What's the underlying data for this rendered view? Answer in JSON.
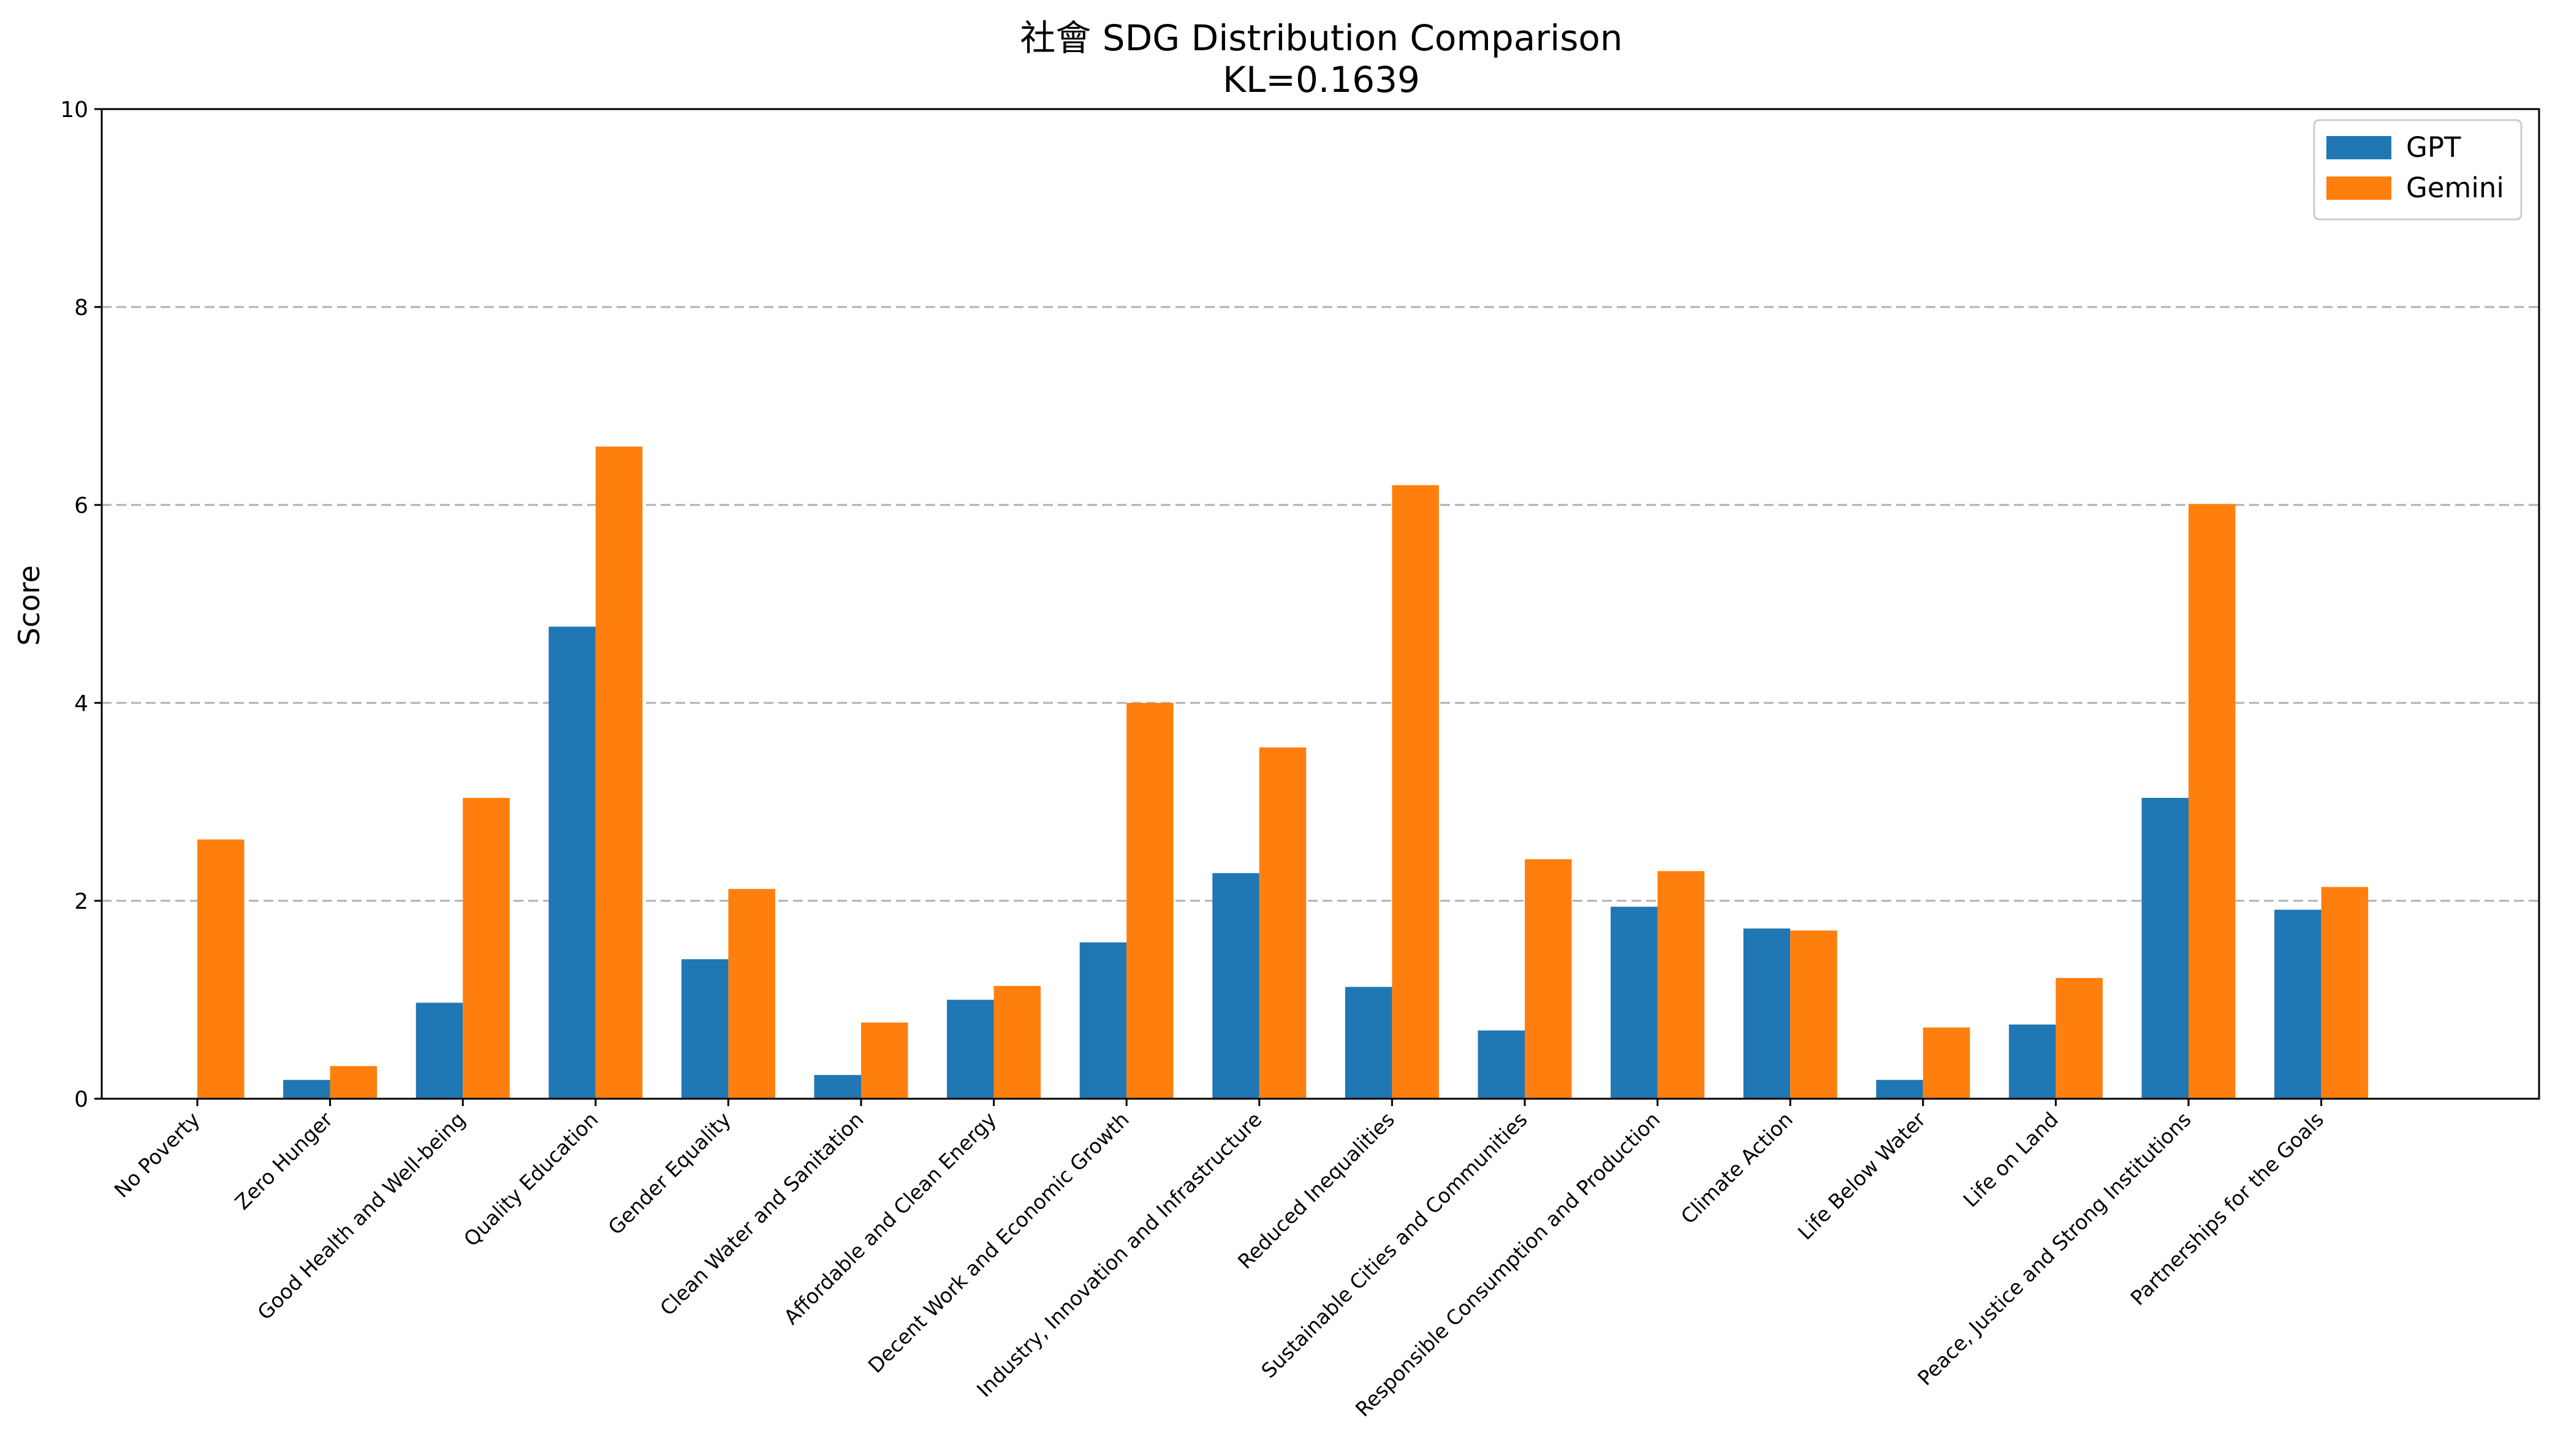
{
  "chart_data": {
    "type": "bar",
    "title": "社會 SDG Distribution Comparison",
    "subtitle": "KL=0.1639",
    "xlabel": "",
    "ylabel": "Score",
    "ylim": [
      0,
      10
    ],
    "yticks": [
      "0",
      "2",
      "4",
      "6",
      "8",
      "10"
    ],
    "grid": "y-dashed",
    "legend_position": "top-right",
    "categories": [
      "No Poverty",
      "Zero Hunger",
      "Good Health and Well-being",
      "Quality Education",
      "Gender Equality",
      "Clean Water and Sanitation",
      "Affordable and Clean Energy",
      "Decent Work and Economic Growth",
      "Industry, Innovation and Infrastructure",
      "Reduced Inequalities",
      "Sustainable Cities and Communities",
      "Responsible Consumption and Production",
      "Climate Action",
      "Life Below Water",
      "Life on Land",
      "Peace, Justice and Strong Institutions",
      "Partnerships for the Goals"
    ],
    "series": [
      {
        "name": "GPT",
        "color": "#1f77b4",
        "values": [
          0,
          0.19,
          0.97,
          4.77,
          1.41,
          0.24,
          1.0,
          1.58,
          2.28,
          1.13,
          0.69,
          1.94,
          1.72,
          0.19,
          0.75,
          3.04,
          1.91
        ]
      },
      {
        "name": "Gemini",
        "color": "#ff7f0e",
        "values": [
          2.62,
          0.33,
          3.04,
          6.59,
          2.12,
          0.77,
          1.14,
          4.0,
          3.55,
          6.2,
          2.42,
          2.3,
          1.7,
          0.72,
          1.22,
          6.01,
          2.14
        ]
      }
    ]
  }
}
